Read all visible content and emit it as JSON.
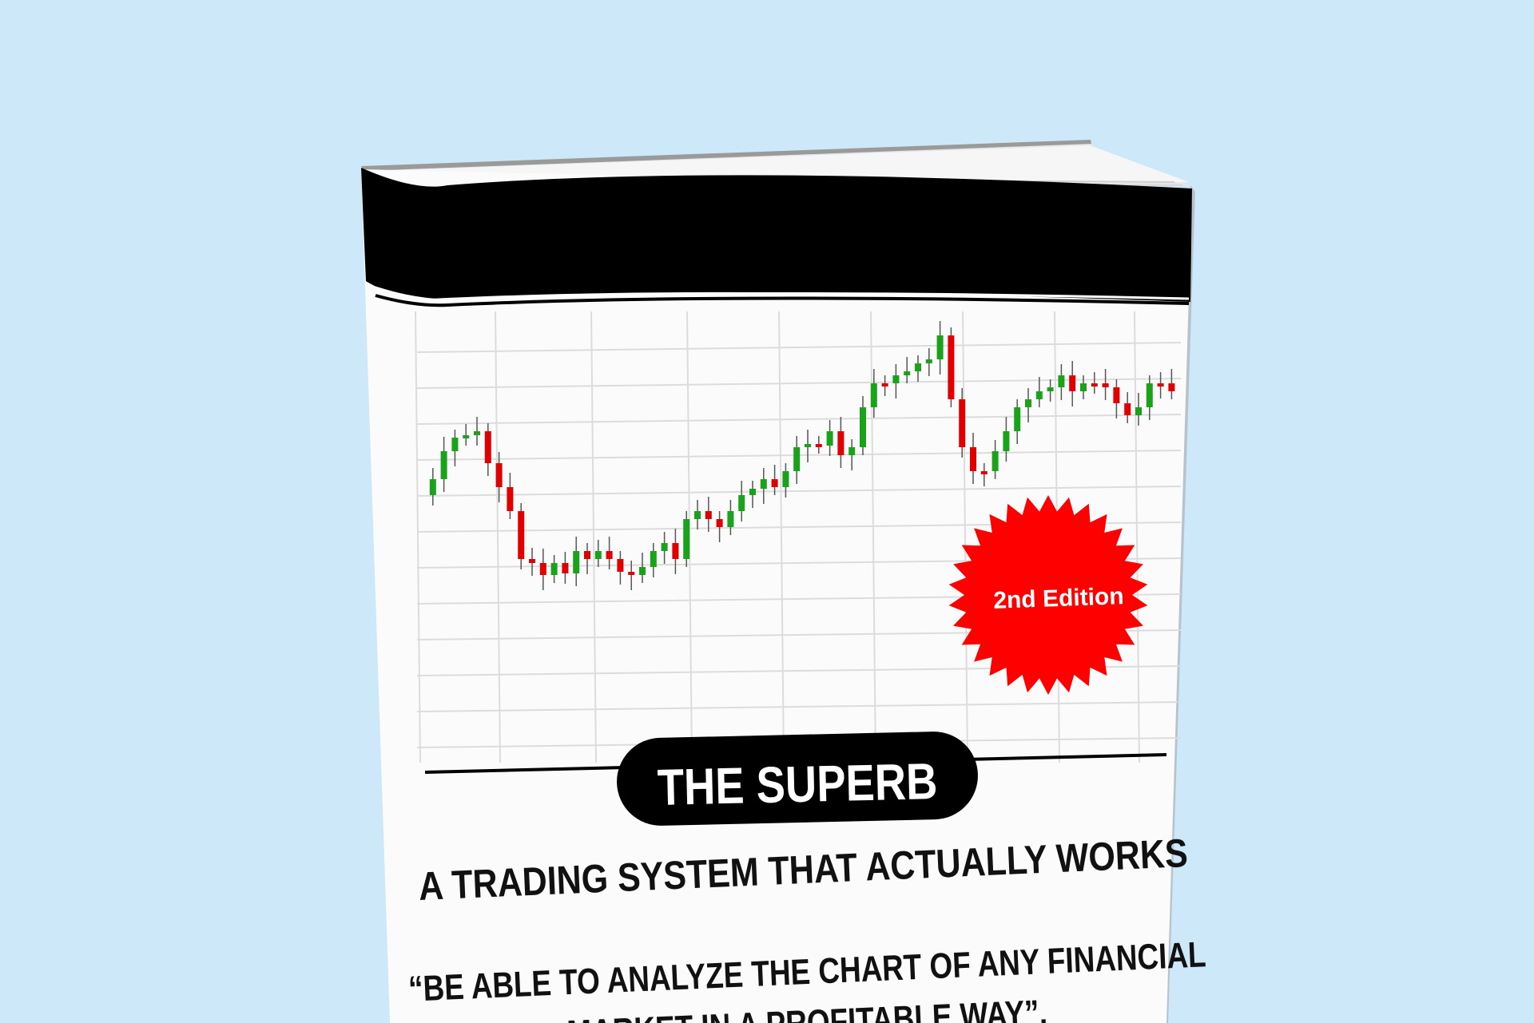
{
  "background_color": "#cde8f8",
  "book": {
    "badge_text": "2nd Edition",
    "badge_color": "#ff0000",
    "title": "THE SUPERB",
    "subtitle": "A TRADING SYSTEM THAT ACTUALLY WORKS",
    "quote_line1": "“BE ABLE TO ANALYZE THE CHART OF ANY FINANCIAL",
    "quote_line2": "MARKET IN A PROFITABLE WAY”.",
    "candle_up_color": "#1aa31a",
    "candle_down_color": "#e00000",
    "grid_color": "#dcdcdc",
    "band_color": "#000000"
  }
}
